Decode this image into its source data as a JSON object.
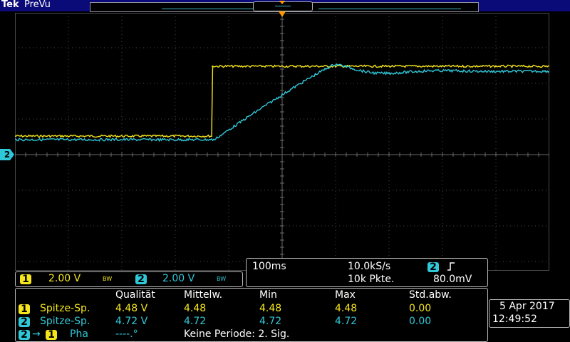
{
  "header": {
    "brand": "Tek",
    "mode": "PreVu"
  },
  "channels": [
    {
      "num": "1",
      "scale": "2.00 V",
      "bw": "BW",
      "color": "#f5e61c"
    },
    {
      "num": "2",
      "scale": "2.00 V",
      "bw": "BW",
      "color": "#2fc8d8"
    }
  ],
  "ground_marker": "2",
  "timebase": {
    "horizontal": "100ms",
    "sample_rate": "10.0kS/s",
    "record_length": "10k Pkte.",
    "trigger_source": "2",
    "trigger_slope_icon": "rising-edge-icon",
    "trigger_level": "80.0mV"
  },
  "measurements": {
    "headers": [
      "Qualität",
      "Mittelw.",
      "Min",
      "Max",
      "Std.abw."
    ],
    "rows": [
      {
        "ch": "1",
        "label": "Spitze-Sp.",
        "value": "4.48 V",
        "mean": "4.48",
        "min": "4.48",
        "max": "4.48",
        "std": "0.00"
      },
      {
        "ch": "2",
        "label": "Spitze-Sp.",
        "value": "4.72 V",
        "mean": "4.72",
        "min": "4.72",
        "max": "4.72",
        "std": "0.00"
      }
    ],
    "phase": {
      "ch_a": "2",
      "arrow": "→",
      "ch_b": "1",
      "label": "Pha",
      "value": "----.°",
      "note": "Keine Periode: 2. Sig."
    }
  },
  "datetime": {
    "date": "5 Apr 2017",
    "time": "12:49:52"
  },
  "colors": {
    "ch1": "#f5e61c",
    "ch2": "#2fc8d8",
    "trigger": "#ff9900",
    "header_bg": "#0a0a78"
  }
}
